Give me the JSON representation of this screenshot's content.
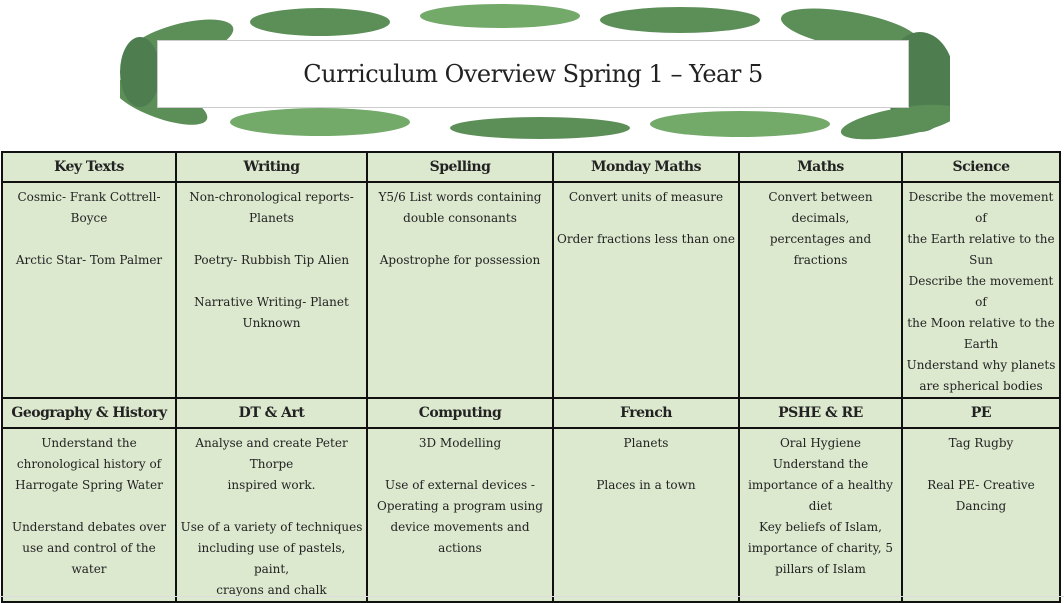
{
  "title": "Curriculum Overview Spring 1 – Year 5",
  "colors": {
    "cell_background": "#dce9cf",
    "border": "#111111",
    "leaf_green": "#3f7a3a"
  },
  "rows": [
    {
      "headers": [
        "Key Texts",
        "Writing",
        "Spelling",
        "Monday Maths",
        "Maths",
        "Science"
      ],
      "cells": [
        [
          "Cosmic- Frank Cottrell-",
          "Boyce",
          "",
          "Arctic Star- Tom Palmer"
        ],
        [
          "Non-chronological reports-",
          "Planets",
          "",
          "Poetry- Rubbish Tip Alien",
          "",
          "Narrative Writing- Planet",
          "Unknown"
        ],
        [
          "Y5/6 List words containing",
          "double consonants",
          "",
          "Apostrophe for possession"
        ],
        [
          "Convert units of measure",
          "",
          "Order fractions less than one"
        ],
        [
          "Convert between decimals,",
          "percentages and fractions"
        ],
        [
          "Describe the movement of",
          "the Earth relative to the",
          "Sun",
          "Describe the movement of",
          "the Moon relative to the",
          "Earth",
          "Understand why planets",
          "are spherical bodies"
        ]
      ]
    },
    {
      "headers": [
        "Geography & History",
        "DT & Art",
        "Computing",
        "French",
        "PSHE & RE",
        "PE"
      ],
      "cells": [
        [
          "Understand the",
          "chronological history of",
          "Harrogate Spring Water",
          "",
          "Understand debates over",
          "use and control of the water"
        ],
        [
          "Analyse and create Peter Thorpe",
          "inspired work.",
          "",
          "Use of a variety of techniques",
          "including use of pastels, paint,",
          "crayons and chalk"
        ],
        [
          "3D Modelling",
          "",
          "Use of external devices -",
          "Operating a program using",
          "device movements and actions"
        ],
        [
          "Planets",
          "",
          "Places in a town"
        ],
        [
          "Oral Hygiene",
          "Understand the",
          "importance of a healthy",
          "diet",
          "Key beliefs of Islam,",
          "importance of charity, 5",
          "pillars of Islam"
        ],
        [
          "Tag Rugby",
          "",
          "Real PE- Creative",
          "Dancing"
        ]
      ]
    }
  ]
}
